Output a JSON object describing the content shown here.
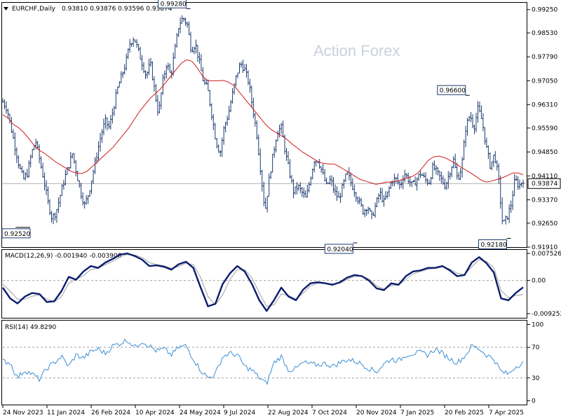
{
  "header": {
    "symbol": "EURCHF,Daily",
    "ohlc": "0.93810 0.93876 0.93596 0.93874",
    "watermark": "Action Forex"
  },
  "colors": {
    "price_bars": "#1b3a70",
    "ma": "#d11b1b",
    "macd_line": "#0a1c6e",
    "macd_signal": "#a0a0a0",
    "rsi": "#3d8fd6",
    "grid_dash": "#a0a0a0"
  },
  "chart_data": [
    {
      "type": "ohlc",
      "name": "price",
      "ylim": [
        0.9191,
        0.9946
      ],
      "y_ticks": [
        "0.99250",
        "0.98530",
        "0.97790",
        "0.97050",
        "0.96310",
        "0.95590",
        "0.94850",
        "0.94110",
        "0.93370",
        "0.92650",
        "0.91910"
      ],
      "current_price_label": "0.93874",
      "current_price": 0.93874,
      "annotations": [
        {
          "label": "0.99280",
          "x": "2024-05-26",
          "y": 0.9928,
          "placement": "above-left"
        },
        {
          "label": "0.92520",
          "x": "2023-12-04",
          "y": 0.9252,
          "placement": "below-left"
        },
        {
          "label": "0.92040",
          "x": "2024-11-08",
          "y": 0.9204,
          "placement": "below-left"
        },
        {
          "label": "0.96600",
          "x": "2025-02-28",
          "y": 0.966,
          "placement": "above-left"
        },
        {
          "label": "0.92180",
          "x": "2025-04-10",
          "y": 0.9218,
          "placement": "below-left"
        }
      ],
      "closes": [
        0.964,
        0.962,
        0.956,
        0.95,
        0.944,
        0.94,
        0.942,
        0.948,
        0.952,
        0.946,
        0.94,
        0.933,
        0.928,
        0.93,
        0.935,
        0.94,
        0.944,
        0.948,
        0.942,
        0.936,
        0.932,
        0.936,
        0.942,
        0.948,
        0.954,
        0.958,
        0.956,
        0.962,
        0.968,
        0.972,
        0.976,
        0.982,
        0.984,
        0.98,
        0.976,
        0.972,
        0.976,
        0.968,
        0.96,
        0.97,
        0.976,
        0.972,
        0.98,
        0.988,
        0.99,
        0.988,
        0.98,
        0.982,
        0.976,
        0.97,
        0.968,
        0.96,
        0.952,
        0.948,
        0.956,
        0.96,
        0.966,
        0.972,
        0.976,
        0.974,
        0.97,
        0.962,
        0.954,
        0.942,
        0.93,
        0.94,
        0.948,
        0.955,
        0.956,
        0.948,
        0.942,
        0.936,
        0.938,
        0.936,
        0.934,
        0.94,
        0.946,
        0.946,
        0.942,
        0.938,
        0.94,
        0.936,
        0.934,
        0.938,
        0.942,
        0.939,
        0.936,
        0.933,
        0.93,
        0.932,
        0.928,
        0.932,
        0.936,
        0.933,
        0.936,
        0.94,
        0.94,
        0.938,
        0.942,
        0.94,
        0.938,
        0.94,
        0.942,
        0.94,
        0.939,
        0.944,
        0.942,
        0.94,
        0.938,
        0.942,
        0.946,
        0.94,
        0.944,
        0.956,
        0.96,
        0.956,
        0.962,
        0.958,
        0.95,
        0.944,
        0.948,
        0.94,
        0.926,
        0.928,
        0.932,
        0.94,
        0.938,
        0.94
      ],
      "ma_values": [
        0.96,
        0.959,
        0.957,
        0.956,
        0.9545,
        0.9525,
        0.9505,
        0.949,
        0.948,
        0.9468,
        0.9455,
        0.9445,
        0.9435,
        0.9425,
        0.942,
        0.9418,
        0.9425,
        0.944,
        0.9455,
        0.947,
        0.9485,
        0.95,
        0.952,
        0.954,
        0.956,
        0.9585,
        0.961,
        0.963,
        0.965,
        0.9665,
        0.968,
        0.97,
        0.972,
        0.974,
        0.976,
        0.977,
        0.9765,
        0.9745,
        0.972,
        0.9705,
        0.9705,
        0.9705,
        0.9706,
        0.97,
        0.969,
        0.967,
        0.965,
        0.963,
        0.961,
        0.959,
        0.957,
        0.9555,
        0.9545,
        0.9535,
        0.9525,
        0.951,
        0.9498,
        0.9485,
        0.9475,
        0.9465,
        0.9455,
        0.945,
        0.9448,
        0.9448,
        0.944,
        0.943,
        0.942,
        0.941,
        0.94,
        0.9395,
        0.939,
        0.9385,
        0.9388,
        0.9392,
        0.9392,
        0.9395,
        0.94,
        0.9405,
        0.941,
        0.942,
        0.944,
        0.946,
        0.947,
        0.9472,
        0.9468,
        0.946,
        0.945,
        0.944,
        0.943,
        0.942,
        0.941,
        0.9398,
        0.9392,
        0.9395,
        0.94,
        0.9405,
        0.9412,
        0.942,
        0.942,
        0.9415
      ],
      "x_tick_labels": [
        "24 Nov 2023",
        "11 Jan 2024",
        "26 Feb 2024",
        "10 Apr 2024",
        "24 May 2024",
        "9 Jul 2024",
        "22 Aug 2024",
        "7 Oct 2024",
        "20 Nov 2024",
        "7 Jan 2025",
        "20 Feb 2025",
        "7 Apr 2025"
      ]
    },
    {
      "type": "line",
      "name": "MACD(12,26,9)",
      "label": "MACD(12,26,9) -0.001940 -0.003908",
      "ylim": [
        -0.0104,
        0.0085
      ],
      "y_ticks": [
        "0.007526",
        "0.00",
        "-0.009252"
      ],
      "macd": [
        -0.002,
        -0.005,
        -0.0064,
        -0.0045,
        -0.0035,
        -0.0038,
        -0.006,
        -0.0058,
        -0.003,
        0.001,
        0.0002,
        0.0025,
        0.004,
        0.0035,
        0.005,
        0.006,
        0.0072,
        0.0075,
        0.0068,
        0.0058,
        0.004,
        0.0042,
        0.0038,
        0.003,
        0.0045,
        0.0052,
        0.0035,
        -0.002,
        -0.0072,
        -0.0065,
        -0.001,
        0.002,
        0.004,
        0.0025,
        -0.001,
        -0.0055,
        -0.0085,
        -0.0055,
        -0.002,
        -0.0045,
        -0.0055,
        -0.0025,
        -0.0008,
        -0.0005,
        -0.0008,
        -0.0012,
        -0.0005,
        0.0008,
        0.0015,
        0.0012,
        -0.0001,
        -0.0022,
        -0.0027,
        -0.0008,
        -0.0012,
        0.0012,
        0.0025,
        0.0028,
        0.0035,
        0.0035,
        0.004,
        0.0028,
        0.0012,
        0.0015,
        0.005,
        0.0065,
        0.0048,
        0.0022,
        -0.005,
        -0.0055,
        -0.0035,
        -0.0019
      ],
      "signal": [
        -0.001,
        -0.003,
        -0.0052,
        -0.0052,
        -0.0044,
        -0.004,
        -0.0052,
        -0.006,
        -0.0045,
        -0.0008,
        0.0003,
        0.0013,
        0.003,
        0.0034,
        0.0044,
        0.0053,
        0.0066,
        0.0072,
        0.0071,
        0.0064,
        0.005,
        0.0044,
        0.0041,
        0.0034,
        0.0039,
        0.0048,
        0.0044,
        0.0008,
        -0.0045,
        -0.0068,
        -0.004,
        0.0003,
        0.003,
        0.003,
        0.0007,
        -0.0035,
        -0.0072,
        -0.0068,
        -0.0038,
        -0.0042,
        -0.0052,
        -0.0035,
        -0.0015,
        -0.0008,
        -0.0008,
        -0.001,
        -0.0008,
        0.0003,
        0.0011,
        0.0012,
        0.0004,
        -0.0015,
        -0.0024,
        -0.0015,
        -0.0013,
        0.0003,
        0.0018,
        0.0025,
        0.0031,
        0.0034,
        0.0038,
        0.0032,
        0.002,
        0.0016,
        0.0038,
        0.0058,
        0.0053,
        0.0035,
        -0.0028,
        -0.0048,
        -0.0042,
        -0.0039
      ]
    },
    {
      "type": "line",
      "name": "RSI(14)",
      "label": "RSI(14) 49.8290",
      "ylim": [
        0,
        100
      ],
      "y_ticks": [
        "100",
        "70",
        "30",
        "0"
      ],
      "levels": [
        70,
        30
      ],
      "values": [
        52,
        50,
        30,
        40,
        35,
        28,
        42,
        50,
        58,
        45,
        60,
        56,
        64,
        68,
        62,
        72,
        75,
        80,
        70,
        78,
        72,
        65,
        68,
        60,
        70,
        72,
        55,
        40,
        30,
        35,
        58,
        62,
        60,
        45,
        40,
        30,
        22,
        50,
        58,
        40,
        42,
        50,
        48,
        47,
        49,
        45,
        50,
        54,
        52,
        48,
        42,
        38,
        48,
        55,
        52,
        60,
        62,
        63,
        60,
        68,
        62,
        55,
        50,
        58,
        72,
        68,
        60,
        55,
        38,
        35,
        45,
        49.8
      ]
    }
  ]
}
